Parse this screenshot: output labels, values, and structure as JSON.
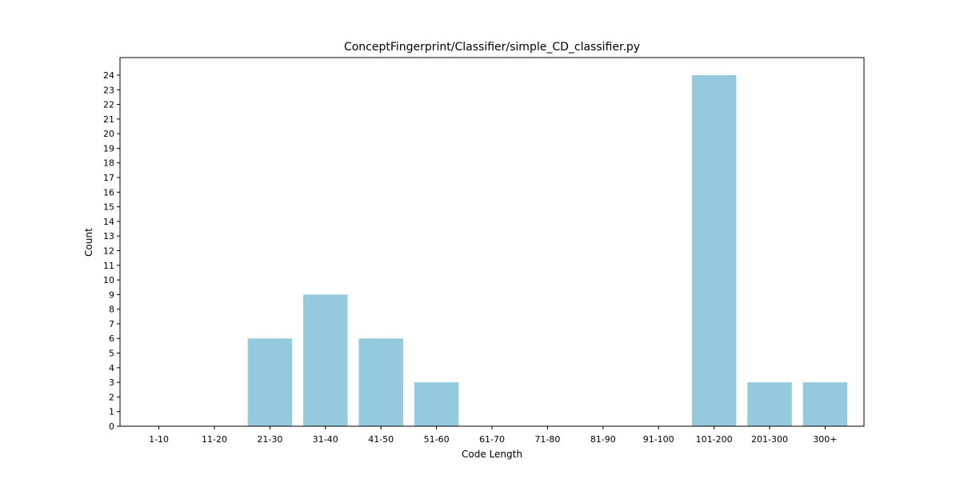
{
  "chart_data": {
    "type": "bar",
    "title": "ConceptFingerprint/Classifier/simple_CD_classifier.py",
    "xlabel": "Code Length",
    "ylabel": "Count",
    "categories": [
      "1-10",
      "11-20",
      "21-30",
      "31-40",
      "41-50",
      "51-60",
      "61-70",
      "71-80",
      "81-90",
      "91-100",
      "101-200",
      "201-300",
      "300+"
    ],
    "values": [
      0,
      0,
      6,
      9,
      6,
      3,
      0,
      0,
      0,
      0,
      24,
      3,
      3
    ],
    "ylim": [
      0,
      25.2
    ],
    "yticks": [
      0,
      1,
      2,
      3,
      4,
      5,
      6,
      7,
      8,
      9,
      10,
      11,
      12,
      13,
      14,
      15,
      16,
      17,
      18,
      19,
      20,
      21,
      22,
      23,
      24
    ],
    "bar_color": "#95c9de",
    "grid": false,
    "legend": "none"
  }
}
